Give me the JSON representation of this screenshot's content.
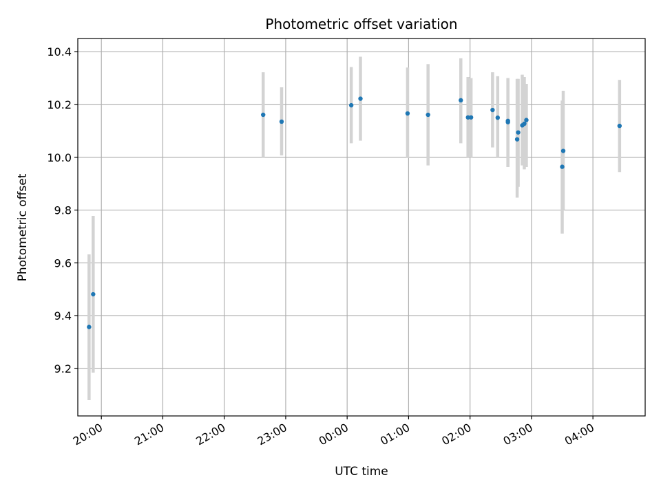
{
  "chart_data": {
    "type": "scatter",
    "title": "Photometric offset variation",
    "xlabel": "UTC time",
    "ylabel": "Photometric offset",
    "x_unit": "UTC time (HH:MM)",
    "xlim": [
      "19:37",
      "04:51"
    ],
    "ylim": [
      9.02,
      10.45
    ],
    "grid": true,
    "x_ticks": [
      {
        "value": "20:00",
        "label": "20:00"
      },
      {
        "value": "21:00",
        "label": "21:00"
      },
      {
        "value": "22:00",
        "label": "22:00"
      },
      {
        "value": "23:00",
        "label": "23:00"
      },
      {
        "value": "00:00",
        "label": "00:00"
      },
      {
        "value": "01:00",
        "label": "01:00"
      },
      {
        "value": "02:00",
        "label": "02:00"
      },
      {
        "value": "03:00",
        "label": "03:00"
      },
      {
        "value": "04:00",
        "label": "04:00"
      }
    ],
    "y_ticks": [
      9.2,
      9.4,
      9.6,
      9.8,
      10.0,
      10.2,
      10.4
    ],
    "y_tick_labels": [
      "9.2",
      "9.4",
      "9.6",
      "9.8",
      "10.0",
      "10.2",
      "10.4"
    ],
    "marker_color": "#1f77b4",
    "errorbar_color": "#d3d3d3",
    "points": [
      {
        "x": "19:48",
        "y": 9.357,
        "low": 9.08,
        "high": 9.632
      },
      {
        "x": "19:52",
        "y": 9.481,
        "low": 9.184,
        "high": 9.778
      },
      {
        "x": "22:38",
        "y": 10.161,
        "low": 10.0,
        "high": 10.322
      },
      {
        "x": "22:56",
        "y": 10.135,
        "low": 10.007,
        "high": 10.265
      },
      {
        "x": "00:04",
        "y": 10.197,
        "low": 10.053,
        "high": 10.342
      },
      {
        "x": "00:13",
        "y": 10.222,
        "low": 10.063,
        "high": 10.381
      },
      {
        "x": "00:59",
        "y": 10.166,
        "low": 9.997,
        "high": 10.34
      },
      {
        "x": "01:19",
        "y": 10.161,
        "low": 9.969,
        "high": 10.353
      },
      {
        "x": "01:51",
        "y": 10.216,
        "low": 10.053,
        "high": 10.375
      },
      {
        "x": "01:58",
        "y": 10.151,
        "low": 9.997,
        "high": 10.304
      },
      {
        "x": "02:01",
        "y": 10.151,
        "low": 10.0,
        "high": 10.3
      },
      {
        "x": "02:22",
        "y": 10.179,
        "low": 10.037,
        "high": 10.322
      },
      {
        "x": "02:27",
        "y": 10.15,
        "low": 9.997,
        "high": 10.307
      },
      {
        "x": "02:37",
        "y": 10.138,
        "low": 9.963,
        "high": 10.3
      },
      {
        "x": "02:37",
        "y": 10.133,
        "low": 9.963,
        "high": 10.3
      },
      {
        "x": "02:46",
        "y": 10.068,
        "low": 9.847,
        "high": 10.297
      },
      {
        "x": "02:47",
        "y": 10.094,
        "low": 9.888,
        "high": 10.297
      },
      {
        "x": "02:51",
        "y": 10.121,
        "low": 9.969,
        "high": 10.313
      },
      {
        "x": "02:53",
        "y": 10.127,
        "low": 9.954,
        "high": 10.304
      },
      {
        "x": "02:55",
        "y": 10.141,
        "low": 9.963,
        "high": 10.278
      },
      {
        "x": "03:30",
        "y": 9.964,
        "low": 9.711,
        "high": 10.215
      },
      {
        "x": "03:31",
        "y": 10.024,
        "low": 9.8,
        "high": 10.252
      },
      {
        "x": "04:26",
        "y": 10.119,
        "low": 9.944,
        "high": 10.293
      }
    ]
  }
}
